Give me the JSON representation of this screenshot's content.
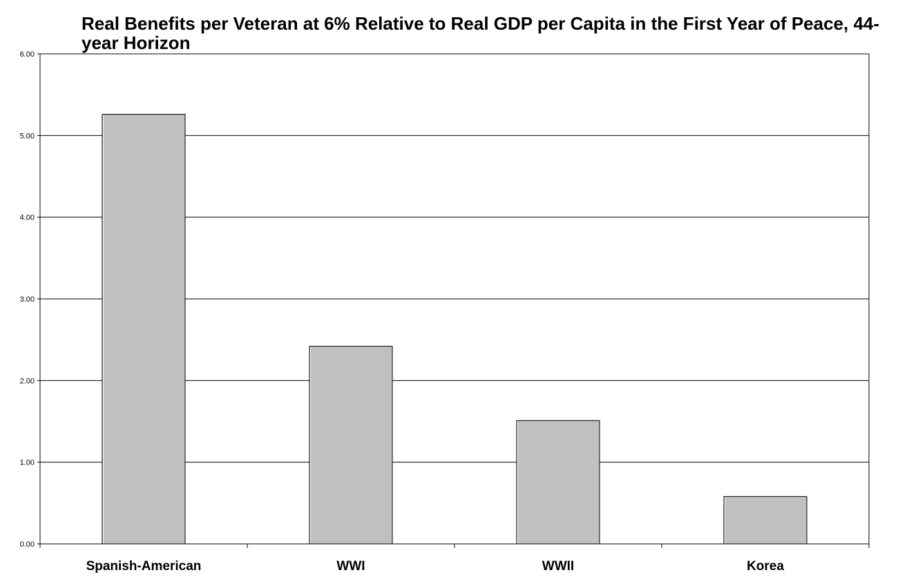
{
  "chart_data": {
    "type": "bar",
    "title": "Real Benefits per Veteran at 6% Relative to Real GDP per Capita in the First Year of Peace, 44-year Horizon",
    "categories": [
      "Spanish-American",
      "WWI",
      "WWII",
      "Korea"
    ],
    "values": [
      5.26,
      2.42,
      1.51,
      0.58
    ],
    "xlabel": "",
    "ylabel": "",
    "ylim": [
      0,
      6
    ],
    "yticks": [
      "0.00",
      "1.00",
      "2.00",
      "3.00",
      "4.00",
      "5.00",
      "6.00"
    ],
    "grid": true,
    "legend": "none",
    "colors": {
      "bar_fill": "#c0c0c0",
      "bar_stroke": "#000000",
      "gridline": "#000000",
      "background": "#ffffff"
    }
  }
}
